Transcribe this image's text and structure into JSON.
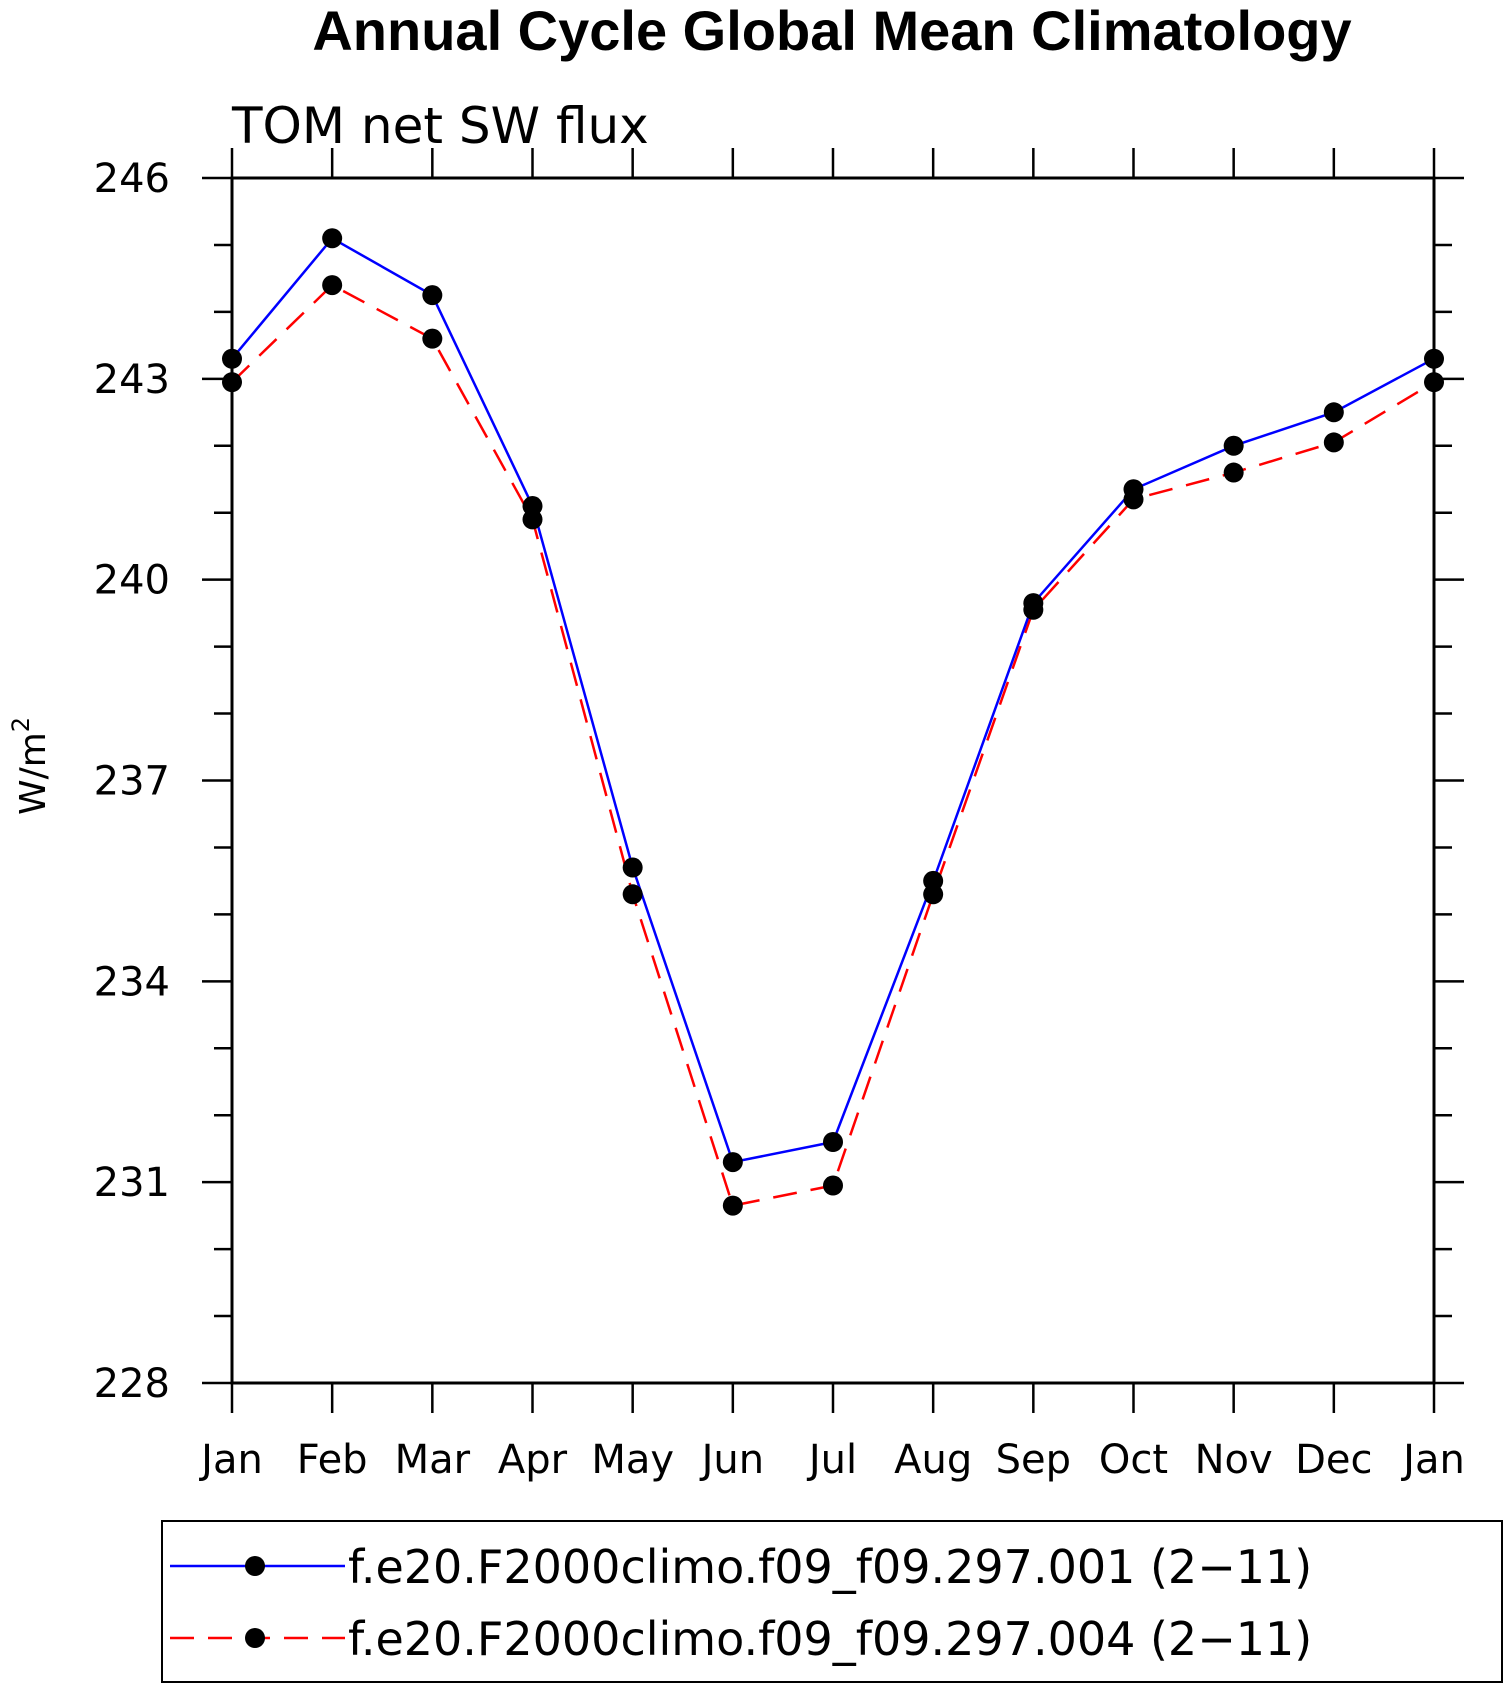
{
  "chart_data": {
    "type": "line",
    "title": "Annual Cycle Global Mean Climatology",
    "subtitle": "TOM net SW flux",
    "ylabel": "W/m",
    "ylabel_sup": "2",
    "xlabel": "",
    "categories": [
      "Jan",
      "Feb",
      "Mar",
      "Apr",
      "May",
      "Jun",
      "Jul",
      "Aug",
      "Sep",
      "Oct",
      "Nov",
      "Dec",
      "Jan"
    ],
    "ylim": [
      228,
      246
    ],
    "yticks": [
      228,
      231,
      234,
      237,
      240,
      243,
      246
    ],
    "ytick_labels": [
      "228",
      "231",
      "234",
      "237",
      "240",
      "243",
      "246"
    ],
    "series": [
      {
        "name": "f.e20.F2000climo.f09_f09.297.001 (2−11)",
        "color": "#0000ff",
        "style": "solid",
        "values": [
          243.3,
          245.1,
          244.25,
          241.1,
          235.7,
          231.3,
          231.6,
          235.5,
          239.65,
          241.35,
          242.0,
          242.5,
          243.3
        ]
      },
      {
        "name": "f.e20.F2000climo.f09_f09.297.004 (2−11)",
        "color": "#ff0000",
        "style": "dashed",
        "values": [
          242.95,
          244.4,
          243.6,
          240.9,
          235.3,
          230.65,
          230.95,
          235.3,
          239.55,
          241.2,
          241.6,
          242.05,
          242.95
        ]
      }
    ],
    "legend_position": "bottom",
    "grid": false
  }
}
